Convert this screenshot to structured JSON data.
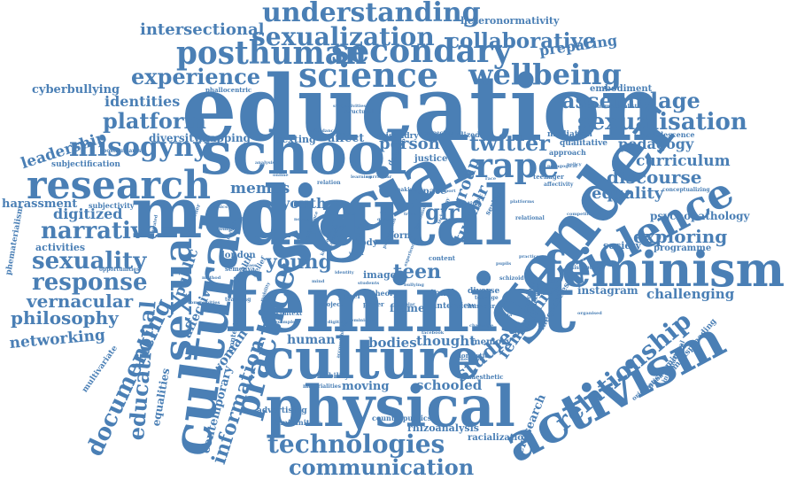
{
  "theme": {
    "word_color": "#4a7fb5"
  },
  "words": [
    {
      "text": "education"
    },
    {
      "text": "feminist"
    },
    {
      "text": "digital"
    },
    {
      "text": "gender"
    },
    {
      "text": "social"
    },
    {
      "text": "media"
    },
    {
      "text": "school"
    },
    {
      "text": "culture"
    },
    {
      "text": "physical"
    },
    {
      "text": "feminism"
    },
    {
      "text": "cultural"
    },
    {
      "text": "activism"
    },
    {
      "text": "sexual"
    },
    {
      "text": "violence"
    },
    {
      "text": "research"
    },
    {
      "text": "science"
    },
    {
      "text": "secondary"
    },
    {
      "text": "posthuman"
    },
    {
      "text": "sexualization"
    },
    {
      "text": "understanding"
    },
    {
      "text": "technologies"
    },
    {
      "text": "rape"
    },
    {
      "text": "practice"
    },
    {
      "text": "wellbeing"
    },
    {
      "text": "misogyny"
    },
    {
      "text": "sexuality"
    },
    {
      "text": "response"
    },
    {
      "text": "narrative"
    },
    {
      "text": "experience"
    },
    {
      "text": "collaborative"
    },
    {
      "text": "assemblage"
    },
    {
      "text": "sexualisation"
    },
    {
      "text": "platform"
    },
    {
      "text": "relationship"
    },
    {
      "text": "documenting"
    },
    {
      "text": "communication"
    },
    {
      "text": "twitter"
    },
    {
      "text": "educational"
    },
    {
      "text": "information"
    },
    {
      "text": "intersectional"
    },
    {
      "text": "discourse"
    },
    {
      "text": "studies"
    },
    {
      "text": "exploring"
    },
    {
      "text": "femininity"
    },
    {
      "text": "curriculum"
    },
    {
      "text": "vernacular"
    },
    {
      "text": "philosophy"
    },
    {
      "text": "girl"
    },
    {
      "text": "equality"
    },
    {
      "text": "young"
    },
    {
      "text": "digitized"
    },
    {
      "text": "leadership"
    },
    {
      "text": "identities"
    },
    {
      "text": "preparing"
    },
    {
      "text": "teen"
    },
    {
      "text": "pedagogy"
    },
    {
      "text": "memes"
    },
    {
      "text": "person"
    },
    {
      "text": "tumblr"
    },
    {
      "text": "group"
    },
    {
      "text": "youth"
    },
    {
      "text": "networking"
    },
    {
      "text": "challenging"
    },
    {
      "text": "bodies"
    },
    {
      "text": "schooled"
    },
    {
      "text": "thought"
    },
    {
      "text": "human"
    },
    {
      "text": "woman"
    },
    {
      "text": "contemporary"
    },
    {
      "text": "public"
    },
    {
      "text": "affective"
    },
    {
      "text": "moving"
    },
    {
      "text": "cyberbullying"
    },
    {
      "text": "harassment"
    },
    {
      "text": "activities"
    },
    {
      "text": "mapping"
    },
    {
      "text": "diversity"
    },
    {
      "text": "sexting"
    },
    {
      "text": "affect"
    },
    {
      "text": "embodiment"
    },
    {
      "text": "psychopathology"
    },
    {
      "text": "instagram"
    },
    {
      "text": "society"
    },
    {
      "text": "programme"
    },
    {
      "text": "heteronormativity"
    },
    {
      "text": "eresearch"
    },
    {
      "text": "equalities"
    },
    {
      "text": "rhizoanalysis"
    },
    {
      "text": "racialization"
    },
    {
      "text": "advertising"
    },
    {
      "text": "femininities"
    },
    {
      "text": "counterpublics"
    },
    {
      "text": "multivariate"
    },
    {
      "text": "memory"
    },
    {
      "text": "london"
    },
    {
      "text": "justice"
    },
    {
      "text": "frame"
    },
    {
      "text": "interview"
    },
    {
      "text": "inequalities"
    },
    {
      "text": "postfeminist"
    },
    {
      "text": "manspreading"
    },
    {
      "text": "phematerialism"
    },
    {
      "text": "subjectification"
    },
    {
      "text": "subjectivity"
    },
    {
      "text": "misandry"
    },
    {
      "text": "mediation"
    },
    {
      "text": "qualitative"
    },
    {
      "text": "approach"
    },
    {
      "text": "adolescence"
    },
    {
      "text": "conceptualizing"
    },
    {
      "text": "phallocentric"
    },
    {
      "text": "posthumanism"
    },
    {
      "text": "phematerialist"
    },
    {
      "text": "racialized"
    },
    {
      "text": "perspective"
    },
    {
      "text": "teenager"
    },
    {
      "text": "affectivity"
    },
    {
      "text": "humour"
    },
    {
      "text": "diverse"
    },
    {
      "text": "teach"
    },
    {
      "text": "space"
    },
    {
      "text": "form"
    },
    {
      "text": "body"
    },
    {
      "text": "image"
    },
    {
      "text": "content"
    },
    {
      "text": "sexism"
    },
    {
      "text": "dystopic"
    },
    {
      "text": "structural"
    },
    {
      "text": "deleuze"
    },
    {
      "text": "health"
    },
    {
      "text": "belief"
    },
    {
      "text": "teaching"
    },
    {
      "text": "contextual"
    },
    {
      "text": "sensibility"
    },
    {
      "text": "materialities"
    },
    {
      "text": "kinaesthetic"
    },
    {
      "text": "international"
    },
    {
      "text": "orientation"
    },
    {
      "text": "sociology"
    },
    {
      "text": "blackness"
    },
    {
      "text": "domestic"
    },
    {
      "text": "paper"
    },
    {
      "text": "power"
    },
    {
      "text": "theory"
    },
    {
      "text": "project"
    },
    {
      "text": "context"
    },
    {
      "text": "semenya"
    },
    {
      "text": "opportunities"
    },
    {
      "text": "researcher"
    },
    {
      "text": "complex"
    },
    {
      "text": "relation"
    },
    {
      "text": "making"
    },
    {
      "text": "texting"
    },
    {
      "text": "schizoid"
    },
    {
      "text": "teenage"
    },
    {
      "text": "relational"
    },
    {
      "text": "competition"
    },
    {
      "text": "disrupting"
    },
    {
      "text": "facebook"
    },
    {
      "text": "example"
    },
    {
      "text": "mobility"
    },
    {
      "text": "communities"
    },
    {
      "text": "subjectivities"
    },
    {
      "text": "affordances"
    },
    {
      "text": "analysis"
    },
    {
      "text": "navigate"
    },
    {
      "text": "theorising"
    },
    {
      "text": "work"
    },
    {
      "text": "site"
    },
    {
      "text": "girls"
    },
    {
      "text": "challenge"
    },
    {
      "text": "accountability"
    },
    {
      "text": "performance"
    },
    {
      "text": "motivated"
    },
    {
      "text": "organised"
    },
    {
      "text": "pedagogical"
    },
    {
      "text": "scholar"
    },
    {
      "text": "feminisms"
    },
    {
      "text": "digitally"
    },
    {
      "text": "discussion"
    },
    {
      "text": "participation"
    },
    {
      "text": "knowledge"
    },
    {
      "text": "curricular"
    },
    {
      "text": "online"
    },
    {
      "text": "learning"
    },
    {
      "text": "norms"
    },
    {
      "text": "voice"
    },
    {
      "text": "agency"
    },
    {
      "text": "bullying"
    },
    {
      "text": "sport"
    },
    {
      "text": "identity"
    },
    {
      "text": "students"
    },
    {
      "text": "experiences"
    },
    {
      "text": "technology"
    },
    {
      "text": "platforms"
    },
    {
      "text": "practices"
    },
    {
      "text": "pupils"
    },
    {
      "text": "queer"
    },
    {
      "text": "trans"
    },
    {
      "text": "ethics"
    },
    {
      "text": "method"
    },
    {
      "text": "policy"
    },
    {
      "text": "data"
    },
    {
      "text": "class"
    },
    {
      "text": "race"
    },
    {
      "text": "mind"
    }
  ]
}
